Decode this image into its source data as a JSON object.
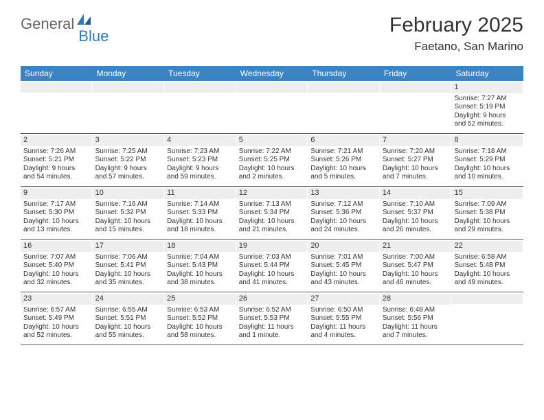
{
  "logo": {
    "text1": "General",
    "text2": "Blue"
  },
  "title": "February 2025",
  "location": "Faetano, San Marino",
  "colors": {
    "header_bg": "#3b84c4",
    "header_text": "#ffffff",
    "stripe": "#eeeeee",
    "rule": "#555555",
    "accent": "#2b7bbf"
  },
  "day_headers": [
    "Sunday",
    "Monday",
    "Tuesday",
    "Wednesday",
    "Thursday",
    "Friday",
    "Saturday"
  ],
  "weeks": [
    [
      {
        "n": "",
        "lines": [
          "",
          "",
          "",
          ""
        ]
      },
      {
        "n": "",
        "lines": [
          "",
          "",
          "",
          ""
        ]
      },
      {
        "n": "",
        "lines": [
          "",
          "",
          "",
          ""
        ]
      },
      {
        "n": "",
        "lines": [
          "",
          "",
          "",
          ""
        ]
      },
      {
        "n": "",
        "lines": [
          "",
          "",
          "",
          ""
        ]
      },
      {
        "n": "",
        "lines": [
          "",
          "",
          "",
          ""
        ]
      },
      {
        "n": "1",
        "lines": [
          "Sunrise: 7:27 AM",
          "Sunset: 5:19 PM",
          "Daylight: 9 hours",
          "and 52 minutes."
        ]
      }
    ],
    [
      {
        "n": "2",
        "lines": [
          "Sunrise: 7:26 AM",
          "Sunset: 5:21 PM",
          "Daylight: 9 hours",
          "and 54 minutes."
        ]
      },
      {
        "n": "3",
        "lines": [
          "Sunrise: 7:25 AM",
          "Sunset: 5:22 PM",
          "Daylight: 9 hours",
          "and 57 minutes."
        ]
      },
      {
        "n": "4",
        "lines": [
          "Sunrise: 7:23 AM",
          "Sunset: 5:23 PM",
          "Daylight: 9 hours",
          "and 59 minutes."
        ]
      },
      {
        "n": "5",
        "lines": [
          "Sunrise: 7:22 AM",
          "Sunset: 5:25 PM",
          "Daylight: 10 hours",
          "and 2 minutes."
        ]
      },
      {
        "n": "6",
        "lines": [
          "Sunrise: 7:21 AM",
          "Sunset: 5:26 PM",
          "Daylight: 10 hours",
          "and 5 minutes."
        ]
      },
      {
        "n": "7",
        "lines": [
          "Sunrise: 7:20 AM",
          "Sunset: 5:27 PM",
          "Daylight: 10 hours",
          "and 7 minutes."
        ]
      },
      {
        "n": "8",
        "lines": [
          "Sunrise: 7:18 AM",
          "Sunset: 5:29 PM",
          "Daylight: 10 hours",
          "and 10 minutes."
        ]
      }
    ],
    [
      {
        "n": "9",
        "lines": [
          "Sunrise: 7:17 AM",
          "Sunset: 5:30 PM",
          "Daylight: 10 hours",
          "and 13 minutes."
        ]
      },
      {
        "n": "10",
        "lines": [
          "Sunrise: 7:16 AM",
          "Sunset: 5:32 PM",
          "Daylight: 10 hours",
          "and 15 minutes."
        ]
      },
      {
        "n": "11",
        "lines": [
          "Sunrise: 7:14 AM",
          "Sunset: 5:33 PM",
          "Daylight: 10 hours",
          "and 18 minutes."
        ]
      },
      {
        "n": "12",
        "lines": [
          "Sunrise: 7:13 AM",
          "Sunset: 5:34 PM",
          "Daylight: 10 hours",
          "and 21 minutes."
        ]
      },
      {
        "n": "13",
        "lines": [
          "Sunrise: 7:12 AM",
          "Sunset: 5:36 PM",
          "Daylight: 10 hours",
          "and 24 minutes."
        ]
      },
      {
        "n": "14",
        "lines": [
          "Sunrise: 7:10 AM",
          "Sunset: 5:37 PM",
          "Daylight: 10 hours",
          "and 26 minutes."
        ]
      },
      {
        "n": "15",
        "lines": [
          "Sunrise: 7:09 AM",
          "Sunset: 5:38 PM",
          "Daylight: 10 hours",
          "and 29 minutes."
        ]
      }
    ],
    [
      {
        "n": "16",
        "lines": [
          "Sunrise: 7:07 AM",
          "Sunset: 5:40 PM",
          "Daylight: 10 hours",
          "and 32 minutes."
        ]
      },
      {
        "n": "17",
        "lines": [
          "Sunrise: 7:06 AM",
          "Sunset: 5:41 PM",
          "Daylight: 10 hours",
          "and 35 minutes."
        ]
      },
      {
        "n": "18",
        "lines": [
          "Sunrise: 7:04 AM",
          "Sunset: 5:43 PM",
          "Daylight: 10 hours",
          "and 38 minutes."
        ]
      },
      {
        "n": "19",
        "lines": [
          "Sunrise: 7:03 AM",
          "Sunset: 5:44 PM",
          "Daylight: 10 hours",
          "and 41 minutes."
        ]
      },
      {
        "n": "20",
        "lines": [
          "Sunrise: 7:01 AM",
          "Sunset: 5:45 PM",
          "Daylight: 10 hours",
          "and 43 minutes."
        ]
      },
      {
        "n": "21",
        "lines": [
          "Sunrise: 7:00 AM",
          "Sunset: 5:47 PM",
          "Daylight: 10 hours",
          "and 46 minutes."
        ]
      },
      {
        "n": "22",
        "lines": [
          "Sunrise: 6:58 AM",
          "Sunset: 5:48 PM",
          "Daylight: 10 hours",
          "and 49 minutes."
        ]
      }
    ],
    [
      {
        "n": "23",
        "lines": [
          "Sunrise: 6:57 AM",
          "Sunset: 5:49 PM",
          "Daylight: 10 hours",
          "and 52 minutes."
        ]
      },
      {
        "n": "24",
        "lines": [
          "Sunrise: 6:55 AM",
          "Sunset: 5:51 PM",
          "Daylight: 10 hours",
          "and 55 minutes."
        ]
      },
      {
        "n": "25",
        "lines": [
          "Sunrise: 6:53 AM",
          "Sunset: 5:52 PM",
          "Daylight: 10 hours",
          "and 58 minutes."
        ]
      },
      {
        "n": "26",
        "lines": [
          "Sunrise: 6:52 AM",
          "Sunset: 5:53 PM",
          "Daylight: 11 hours",
          "and 1 minute."
        ]
      },
      {
        "n": "27",
        "lines": [
          "Sunrise: 6:50 AM",
          "Sunset: 5:55 PM",
          "Daylight: 11 hours",
          "and 4 minutes."
        ]
      },
      {
        "n": "28",
        "lines": [
          "Sunrise: 6:48 AM",
          "Sunset: 5:56 PM",
          "Daylight: 11 hours",
          "and 7 minutes."
        ]
      },
      {
        "n": "",
        "lines": [
          "",
          "",
          "",
          ""
        ]
      }
    ]
  ]
}
